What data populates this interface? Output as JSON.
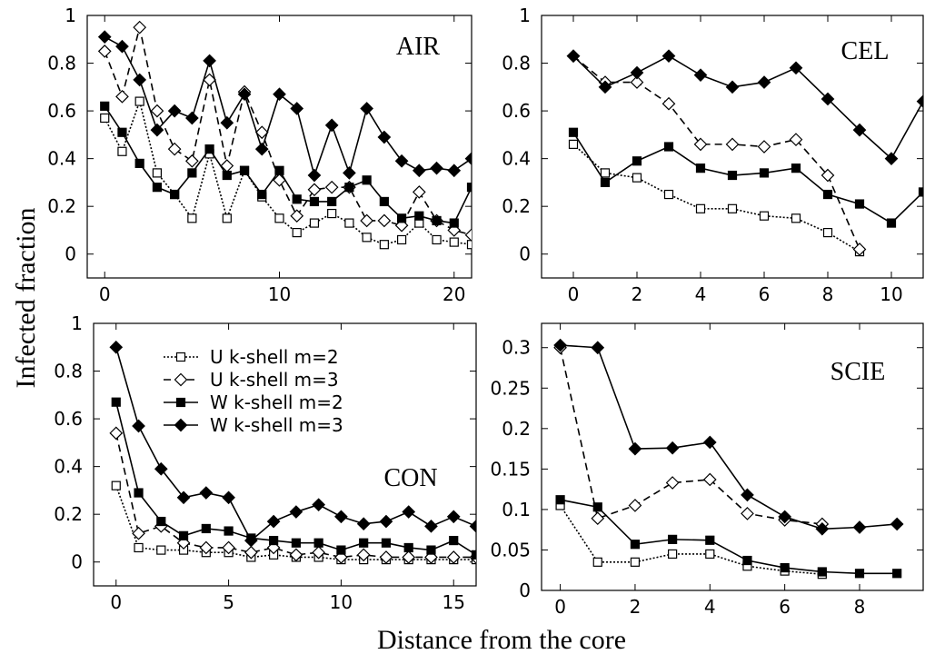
{
  "figure": {
    "ylabel": "Infected fraction",
    "xlabel": "Distance from the core"
  },
  "legend": [
    {
      "label": "U  k-shell m=2",
      "series": 0
    },
    {
      "label": "U  k-shell m=3",
      "series": 1
    },
    {
      "label": "W  k-shell m=2",
      "series": 2
    },
    {
      "label": "W  k-shell m=3",
      "series": 3
    }
  ],
  "series_styles": [
    {
      "marker": "square",
      "fill": "#ffffff",
      "dash": "2,2",
      "label": "U  k-shell m=2"
    },
    {
      "marker": "diamond",
      "fill": "#ffffff",
      "dash": "8,5",
      "label": "U  k-shell m=3"
    },
    {
      "marker": "square",
      "fill": "#000000",
      "dash": "",
      "label": "W  k-shell m=2"
    },
    {
      "marker": "diamond",
      "fill": "#000000",
      "dash": "",
      "label": "W  k-shell m=3"
    }
  ],
  "chart_data": [
    {
      "type": "line",
      "title": "AIR",
      "xlim": [
        -1,
        21
      ],
      "ylim": [
        -0.1,
        1
      ],
      "xticks": [
        0,
        10,
        20
      ],
      "xtick_labels": [
        "0",
        "10",
        "20"
      ],
      "yticks": [
        0,
        0.2,
        0.4,
        0.6,
        0.8,
        1
      ],
      "ytick_labels": [
        "0",
        "0.2",
        "0.4",
        "0.6",
        "0.8",
        "1"
      ],
      "series": [
        {
          "x": [
            0,
            1,
            2,
            3,
            4,
            5,
            6,
            7,
            8,
            9,
            10,
            11,
            12,
            13,
            14,
            15,
            16,
            17,
            18,
            19,
            20,
            21
          ],
          "values": [
            0.57,
            0.43,
            0.64,
            0.34,
            0.25,
            0.15,
            0.42,
            0.15,
            0.35,
            0.24,
            0.15,
            0.09,
            0.13,
            0.17,
            0.13,
            0.07,
            0.04,
            0.06,
            0.13,
            0.06,
            0.05,
            0.04
          ]
        },
        {
          "x": [
            0,
            1,
            2,
            3,
            4,
            5,
            6,
            7,
            8,
            9,
            10,
            11,
            12,
            13,
            14,
            15,
            16,
            17,
            18,
            19,
            20,
            21
          ],
          "values": [
            0.85,
            0.66,
            0.95,
            0.6,
            0.44,
            0.39,
            0.73,
            0.37,
            0.68,
            0.51,
            0.31,
            0.16,
            0.27,
            0.28,
            0.28,
            0.14,
            0.14,
            0.12,
            0.26,
            0.14,
            0.1,
            0.08
          ]
        },
        {
          "x": [
            0,
            1,
            2,
            3,
            4,
            5,
            6,
            7,
            8,
            9,
            10,
            11,
            12,
            13,
            14,
            15,
            16,
            17,
            18,
            19,
            20,
            21
          ],
          "values": [
            0.62,
            0.51,
            0.38,
            0.28,
            0.25,
            0.34,
            0.44,
            0.33,
            0.35,
            0.25,
            0.35,
            0.23,
            0.22,
            0.22,
            0.28,
            0.31,
            0.22,
            0.15,
            0.16,
            0.14,
            0.13,
            0.28
          ]
        },
        {
          "x": [
            0,
            1,
            2,
            3,
            4,
            5,
            6,
            7,
            8,
            9,
            10,
            11,
            12,
            13,
            14,
            15,
            16,
            17,
            18,
            19,
            20,
            21
          ],
          "values": [
            0.91,
            0.87,
            0.73,
            0.52,
            0.6,
            0.57,
            0.81,
            0.55,
            0.67,
            0.44,
            0.67,
            0.61,
            0.33,
            0.54,
            0.34,
            0.61,
            0.49,
            0.39,
            0.35,
            0.36,
            0.35,
            0.4
          ]
        }
      ]
    },
    {
      "type": "line",
      "title": "CEL",
      "xlim": [
        -1,
        11
      ],
      "ylim": [
        -0.1,
        1
      ],
      "xticks": [
        0,
        2,
        4,
        6,
        8,
        10
      ],
      "xtick_labels": [
        "0",
        "2",
        "4",
        "6",
        "8",
        "10"
      ],
      "yticks": [
        0,
        0.2,
        0.4,
        0.6,
        0.8,
        1
      ],
      "ytick_labels": [
        "0",
        "0.2",
        "0.4",
        "0.6",
        "0.8",
        "1"
      ],
      "series": [
        {
          "x": [
            0,
            1,
            2,
            3,
            4,
            5,
            6,
            7,
            8,
            9
          ],
          "values": [
            0.46,
            0.34,
            0.32,
            0.25,
            0.19,
            0.19,
            0.16,
            0.15,
            0.09,
            0.01
          ]
        },
        {
          "x": [
            0,
            1,
            2,
            3,
            4,
            5,
            6,
            7,
            8,
            9
          ],
          "values": [
            0.83,
            0.72,
            0.72,
            0.63,
            0.46,
            0.46,
            0.45,
            0.48,
            0.33,
            0.02
          ]
        },
        {
          "x": [
            0,
            1,
            2,
            3,
            4,
            5,
            6,
            7,
            8,
            9,
            10,
            11
          ],
          "values": [
            0.51,
            0.3,
            0.39,
            0.45,
            0.36,
            0.33,
            0.34,
            0.36,
            0.25,
            0.21,
            0.13,
            0.26
          ]
        },
        {
          "x": [
            0,
            1,
            2,
            3,
            4,
            5,
            6,
            7,
            8,
            9,
            10,
            11
          ],
          "values": [
            0.83,
            0.7,
            0.76,
            0.83,
            0.75,
            0.7,
            0.72,
            0.78,
            0.65,
            0.52,
            0.4,
            0.64
          ]
        }
      ]
    },
    {
      "type": "line",
      "title": "CON",
      "xlim": [
        -1,
        16
      ],
      "ylim": [
        -0.1,
        1
      ],
      "xticks": [
        0,
        5,
        10,
        15
      ],
      "xtick_labels": [
        "0",
        "5",
        "10",
        "15"
      ],
      "yticks": [
        0,
        0.2,
        0.4,
        0.6,
        0.8,
        1
      ],
      "ytick_labels": [
        "0",
        "0.2",
        "0.4",
        "0.6",
        "0.8",
        "1"
      ],
      "series": [
        {
          "x": [
            0,
            1,
            2,
            3,
            4,
            5,
            6,
            7,
            8,
            9,
            10,
            11,
            12,
            13,
            14,
            15,
            16
          ],
          "values": [
            0.32,
            0.06,
            0.05,
            0.05,
            0.04,
            0.04,
            0.02,
            0.03,
            0.02,
            0.02,
            0.01,
            0.01,
            0.01,
            0.01,
            0.01,
            0.01,
            0.01
          ]
        },
        {
          "x": [
            0,
            1,
            2,
            3,
            4,
            5,
            6,
            7,
            8,
            9,
            10,
            11,
            12,
            13,
            14,
            15,
            16
          ],
          "values": [
            0.54,
            0.12,
            0.15,
            0.08,
            0.06,
            0.06,
            0.04,
            0.06,
            0.03,
            0.04,
            0.02,
            0.03,
            0.02,
            0.02,
            0.02,
            0.02,
            0.02
          ]
        },
        {
          "x": [
            0,
            1,
            2,
            3,
            4,
            5,
            6,
            7,
            8,
            9,
            10,
            11,
            12,
            13,
            14,
            15,
            16
          ],
          "values": [
            0.67,
            0.29,
            0.17,
            0.11,
            0.14,
            0.13,
            0.1,
            0.09,
            0.08,
            0.08,
            0.05,
            0.08,
            0.08,
            0.06,
            0.05,
            0.09,
            0.03
          ]
        },
        {
          "x": [
            0,
            1,
            2,
            3,
            4,
            5,
            6,
            7,
            8,
            9,
            10,
            11,
            12,
            13,
            14,
            15,
            16
          ],
          "values": [
            0.9,
            0.57,
            0.39,
            0.27,
            0.29,
            0.27,
            0.09,
            0.17,
            0.21,
            0.24,
            0.19,
            0.16,
            0.17,
            0.21,
            0.15,
            0.19,
            0.15
          ]
        }
      ]
    },
    {
      "type": "line",
      "title": "SCIE",
      "xlim": [
        -0.5,
        9.7
      ],
      "ylim": [
        0,
        0.33
      ],
      "xticks": [
        0,
        2,
        4,
        6,
        8
      ],
      "xtick_labels": [
        "0",
        "2",
        "4",
        "6",
        "8"
      ],
      "yticks": [
        0,
        0.05,
        0.1,
        0.15,
        0.2,
        0.25,
        0.3
      ],
      "ytick_labels": [
        "0",
        "0.05",
        "0.1",
        "0.15",
        "0.2",
        "0.25",
        "0.3"
      ],
      "series": [
        {
          "x": [
            0,
            1,
            2,
            3,
            4,
            5,
            6,
            7
          ],
          "values": [
            0.105,
            0.035,
            0.035,
            0.045,
            0.045,
            0.03,
            0.024,
            0.02
          ]
        },
        {
          "x": [
            0,
            1,
            2,
            3,
            4,
            5,
            6,
            7
          ],
          "values": [
            0.3,
            0.089,
            0.105,
            0.133,
            0.137,
            0.095,
            0.087,
            0.082
          ]
        },
        {
          "x": [
            0,
            1,
            2,
            3,
            4,
            5,
            6,
            7,
            8,
            9
          ],
          "values": [
            0.112,
            0.103,
            0.057,
            0.063,
            0.062,
            0.037,
            0.028,
            0.023,
            0.021,
            0.021
          ]
        },
        {
          "x": [
            0,
            1,
            2,
            3,
            4,
            5,
            6,
            7,
            8,
            9
          ],
          "values": [
            0.303,
            0.3,
            0.175,
            0.176,
            0.183,
            0.118,
            0.091,
            0.076,
            0.078,
            0.082
          ]
        }
      ]
    }
  ]
}
